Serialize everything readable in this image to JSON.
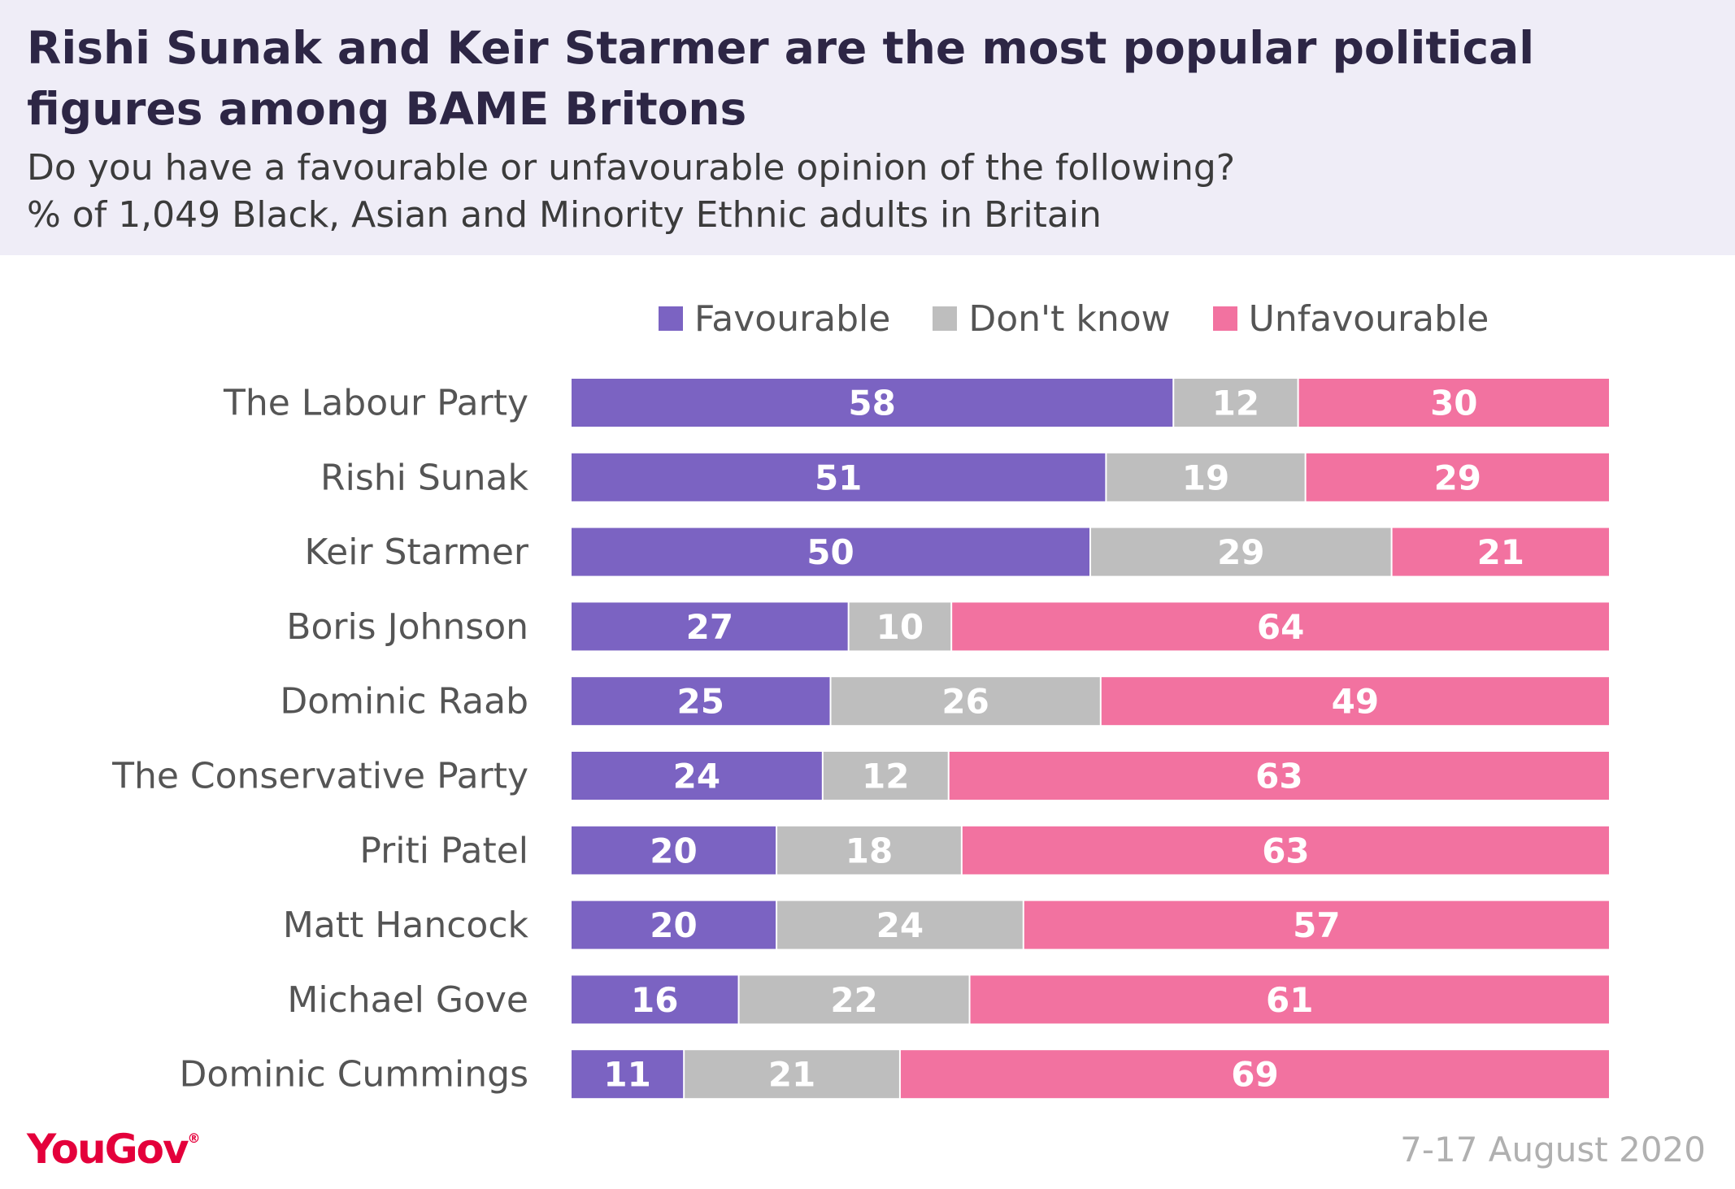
{
  "header": {
    "title": "Rishi Sunak and Keir Starmer are the most popular political figures among BAME Britons",
    "subtitle_line1": "Do you have a favourable or unfavourable opinion of the following?",
    "subtitle_line2": "% of 1,049 Black, Asian and Minority Ethnic adults in Britain"
  },
  "footer": {
    "logo": "YouGov",
    "date": "7-17 August 2020"
  },
  "colors": {
    "favourable": "#7b63c2",
    "dont_know": "#bebebe",
    "unfavourable": "#f272a0",
    "header_bg": "#efedf7"
  },
  "chart_data": {
    "type": "bar",
    "orientation": "horizontal",
    "stacked": true,
    "categories": [
      "The Labour Party",
      "Rishi Sunak",
      "Keir Starmer",
      "Boris Johnson",
      "Dominic Raab",
      "The Conservative Party",
      "Priti Patel",
      "Matt Hancock",
      "Michael Gove",
      "Dominic Cummings"
    ],
    "series": [
      {
        "name": "Favourable",
        "color": "#7b63c2",
        "values": [
          58,
          51,
          50,
          27,
          25,
          24,
          20,
          20,
          16,
          11
        ]
      },
      {
        "name": "Don't know",
        "color": "#bebebe",
        "values": [
          12,
          19,
          29,
          10,
          26,
          12,
          18,
          24,
          22,
          21
        ]
      },
      {
        "name": "Unfavourable",
        "color": "#f272a0",
        "values": [
          30,
          29,
          21,
          64,
          49,
          63,
          63,
          57,
          61,
          69
        ]
      }
    ],
    "legend_position": "top",
    "grid": false,
    "xlim": [
      0,
      100
    ]
  }
}
